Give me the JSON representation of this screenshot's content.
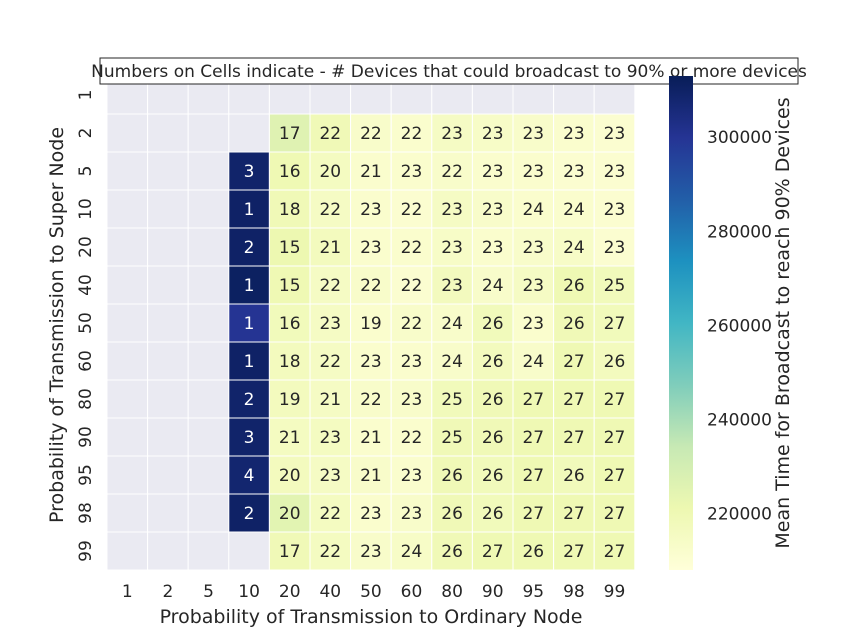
{
  "chart_data": {
    "type": "heatmap",
    "title": "Numbers on Cells indicate - # Devices that could broadcast to 90% or more devices",
    "xlabel": "Probability of Transmission to Ordinary Node",
    "ylabel": "Probability of Transmission to Super Node",
    "colorbar_label": "Mean Time for Broadcast to reach 90% Devices",
    "x_categories": [
      "1",
      "2",
      "5",
      "10",
      "20",
      "40",
      "50",
      "60",
      "80",
      "90",
      "95",
      "98",
      "99"
    ],
    "y_categories": [
      "1",
      "2",
      "5",
      "10",
      "20",
      "40",
      "50",
      "60",
      "80",
      "90",
      "95",
      "98",
      "99"
    ],
    "colorbar_ticks": [
      "220000",
      "240000",
      "260000",
      "280000",
      "300000"
    ],
    "colorbar_range": [
      208000,
      313000
    ],
    "colormap": "YlGnBu",
    "missing_color": "#eaeaf2",
    "annotations": [
      [
        null,
        null,
        null,
        null,
        null,
        null,
        null,
        null,
        null,
        null,
        null,
        null,
        null
      ],
      [
        null,
        null,
        null,
        null,
        17,
        22,
        22,
        22,
        23,
        23,
        23,
        23,
        23
      ],
      [
        null,
        null,
        null,
        3,
        16,
        20,
        21,
        23,
        22,
        23,
        23,
        23,
        23
      ],
      [
        null,
        null,
        null,
        1,
        18,
        22,
        23,
        22,
        23,
        23,
        24,
        24,
        23
      ],
      [
        null,
        null,
        null,
        2,
        15,
        21,
        23,
        22,
        23,
        23,
        23,
        24,
        23
      ],
      [
        null,
        null,
        null,
        1,
        15,
        22,
        22,
        22,
        23,
        24,
        23,
        26,
        25
      ],
      [
        null,
        null,
        null,
        1,
        16,
        23,
        19,
        22,
        24,
        26,
        23,
        26,
        27
      ],
      [
        null,
        null,
        null,
        1,
        18,
        22,
        23,
        23,
        24,
        26,
        24,
        27,
        26
      ],
      [
        null,
        null,
        null,
        2,
        19,
        21,
        22,
        23,
        25,
        26,
        27,
        27,
        27
      ],
      [
        null,
        null,
        null,
        3,
        21,
        23,
        21,
        22,
        25,
        26,
        27,
        27,
        27
      ],
      [
        null,
        null,
        null,
        4,
        20,
        23,
        21,
        23,
        26,
        26,
        27,
        26,
        27
      ],
      [
        null,
        null,
        null,
        2,
        20,
        22,
        23,
        23,
        26,
        26,
        27,
        27,
        27
      ],
      [
        null,
        null,
        null,
        null,
        17,
        22,
        23,
        24,
        26,
        27,
        26,
        27,
        27
      ]
    ],
    "values": [
      [
        null,
        null,
        null,
        null,
        null,
        null,
        null,
        null,
        null,
        null,
        null,
        null,
        null
      ],
      [
        null,
        null,
        null,
        null,
        226000,
        219000,
        213000,
        212000,
        215000,
        214000,
        213000,
        212000,
        211000
      ],
      [
        null,
        null,
        null,
        309000,
        220000,
        216000,
        212000,
        212000,
        213000,
        212000,
        212000,
        211000,
        211000
      ],
      [
        null,
        null,
        null,
        310000,
        219000,
        215000,
        212000,
        211000,
        215000,
        213000,
        212000,
        212000,
        211000
      ],
      [
        null,
        null,
        null,
        310000,
        221000,
        217000,
        212000,
        212000,
        214000,
        212000,
        213000,
        214000,
        211000
      ],
      [
        null,
        null,
        null,
        311000,
        220000,
        215000,
        213000,
        211000,
        217000,
        213000,
        215000,
        220000,
        218000
      ],
      [
        null,
        null,
        null,
        300000,
        218000,
        215000,
        212000,
        213000,
        213000,
        218000,
        212000,
        219000,
        218000
      ],
      [
        null,
        null,
        null,
        310000,
        217000,
        215000,
        212000,
        212000,
        213000,
        217000,
        213000,
        220000,
        217000
      ],
      [
        null,
        null,
        null,
        309000,
        217000,
        215000,
        213000,
        213000,
        218000,
        219000,
        220000,
        220000,
        220000
      ],
      [
        null,
        null,
        null,
        309000,
        216000,
        216000,
        212000,
        212000,
        219000,
        219000,
        220000,
        220000,
        220000
      ],
      [
        null,
        null,
        null,
        308000,
        217000,
        215000,
        213000,
        212000,
        219000,
        218000,
        220000,
        218000,
        220000
      ],
      [
        null,
        null,
        null,
        310000,
        225000,
        216000,
        212000,
        213000,
        219000,
        218000,
        220000,
        220000,
        220000
      ],
      [
        null,
        null,
        null,
        null,
        219000,
        216000,
        213000,
        214000,
        219000,
        220000,
        220000,
        220000,
        220000
      ]
    ]
  }
}
